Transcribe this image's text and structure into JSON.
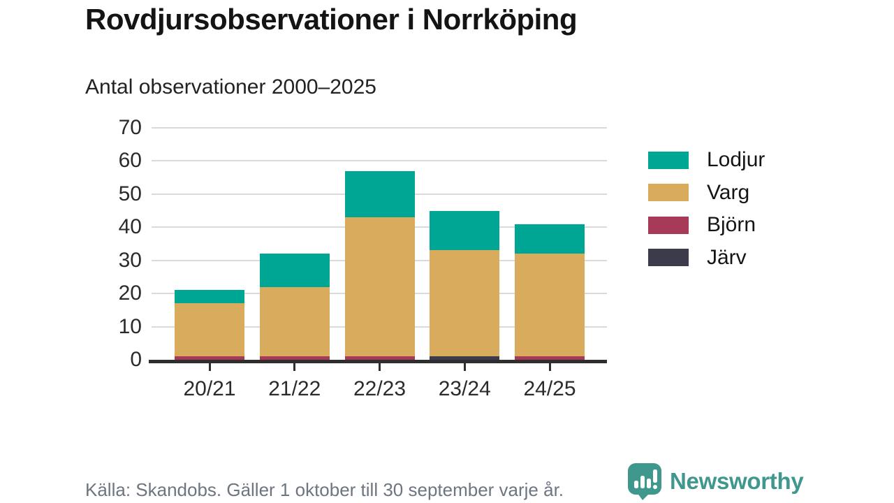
{
  "chart_data": {
    "type": "bar",
    "stacked": true,
    "title": "Rovdjursobservationer i Norrköping",
    "subtitle": "Antal observationer 2000–2025",
    "xlabel": "",
    "ylabel": "",
    "categories": [
      "20/21",
      "21/22",
      "22/23",
      "23/24",
      "24/25"
    ],
    "series": [
      {
        "name": "Lodjur",
        "color": "#00a694",
        "values": [
          4,
          10,
          14,
          12,
          9
        ]
      },
      {
        "name": "Varg",
        "color": "#d9ab5c",
        "values": [
          16,
          21,
          42,
          32,
          31
        ]
      },
      {
        "name": "Björn",
        "color": "#a73a57",
        "values": [
          1,
          1,
          1,
          0,
          1
        ]
      },
      {
        "name": "Järv",
        "color": "#3c3b4c",
        "values": [
          0,
          0,
          0,
          1,
          0
        ]
      }
    ],
    "stack_bottom_to_top": [
      "Järv",
      "Björn",
      "Varg",
      "Lodjur"
    ],
    "ylim": [
      0,
      70
    ],
    "yticks": [
      0,
      10,
      20,
      30,
      40,
      50,
      60,
      70
    ],
    "grid": true,
    "legend_position": "right"
  },
  "footer": {
    "source": "Källa: Skandobs. Gäller 1 oktober till 30 september varje år."
  },
  "branding": {
    "name": "Newsworthy",
    "color": "#3f978d",
    "icon": "newsworthy-chart-bubble-icon"
  }
}
